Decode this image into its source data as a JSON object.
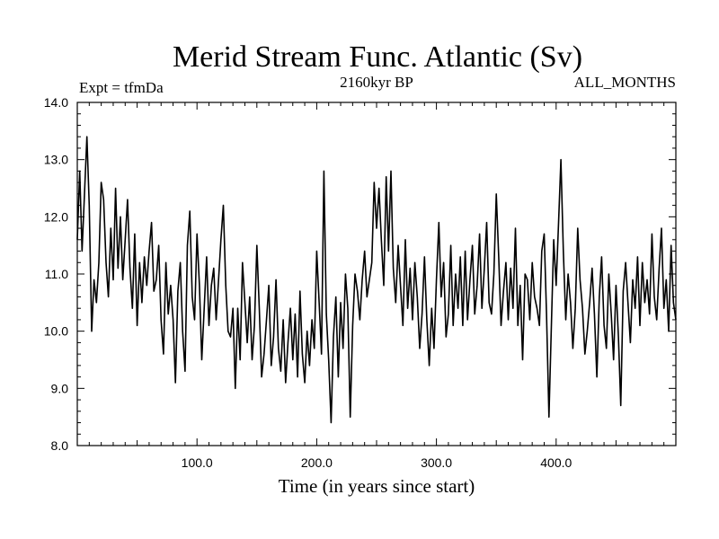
{
  "chart_data": {
    "type": "line",
    "title": "Merid Stream Func. Atlantic (Sv)",
    "subtitle_left": "Expt = tfmDa",
    "subtitle_center": "2160kyr BP",
    "subtitle_right": "ALL_MONTHS",
    "xlabel": "Time (in years since start)",
    "ylabel": "",
    "xlim": [
      0,
      500
    ],
    "ylim": [
      8.0,
      14.0
    ],
    "x_ticks": [
      100,
      200,
      300,
      400
    ],
    "x_tick_labels": [
      "100.0",
      "200.0",
      "300.0",
      "400.0"
    ],
    "y_ticks": [
      8,
      9,
      10,
      11,
      12,
      13,
      14
    ],
    "y_tick_labels": [
      "8.0",
      "9.0",
      "10.0",
      "11.0",
      "12.0",
      "13.0",
      "14.0"
    ],
    "grid": false,
    "series": [
      {
        "name": "Merid Stream Func. Atlantic",
        "color": "#000000",
        "x_start": 0,
        "x_step": 2,
        "values": [
          11.6,
          12.8,
          11.4,
          12.4,
          13.4,
          12.2,
          10.0,
          10.9,
          10.5,
          11.2,
          12.6,
          12.3,
          11.2,
          10.6,
          11.8,
          10.9,
          12.5,
          11.1,
          12.0,
          10.9,
          11.6,
          12.3,
          11.1,
          10.4,
          11.7,
          10.1,
          11.2,
          10.5,
          11.3,
          10.8,
          11.4,
          11.9,
          10.7,
          10.9,
          11.5,
          10.2,
          9.6,
          11.2,
          10.3,
          10.8,
          10.2,
          9.1,
          10.7,
          11.2,
          10.0,
          9.3,
          11.5,
          12.1,
          10.6,
          10.2,
          11.7,
          10.8,
          9.5,
          10.4,
          11.3,
          10.1,
          10.8,
          11.1,
          10.2,
          10.9,
          11.6,
          12.2,
          10.8,
          10.0,
          9.9,
          10.4,
          9.0,
          10.4,
          9.5,
          11.2,
          10.5,
          9.8,
          10.6,
          9.5,
          10.1,
          11.5,
          10.4,
          9.2,
          9.6,
          10.2,
          10.8,
          9.4,
          9.9,
          10.9,
          9.7,
          9.3,
          10.2,
          9.1,
          9.8,
          10.4,
          9.5,
          10.3,
          9.2,
          10.7,
          9.6,
          9.1,
          10.0,
          9.4,
          10.2,
          9.7,
          11.4,
          10.5,
          9.6,
          12.8,
          10.3,
          9.5,
          8.4,
          9.9,
          10.6,
          9.2,
          10.5,
          9.7,
          11.0,
          10.4,
          8.5,
          10.1,
          11.0,
          10.7,
          10.2,
          10.9,
          11.4,
          10.6,
          10.9,
          11.2,
          12.6,
          11.8,
          12.5,
          11.6,
          10.8,
          12.7,
          11.4,
          12.8,
          11.1,
          10.5,
          11.5,
          10.8,
          10.1,
          11.6,
          10.4,
          11.1,
          10.2,
          11.2,
          10.6,
          9.7,
          10.3,
          11.3,
          10.2,
          9.4,
          10.4,
          9.7,
          10.9,
          11.9,
          10.6,
          11.2,
          9.9,
          10.3,
          11.5,
          10.1,
          11.0,
          10.4,
          11.3,
          10.1,
          11.4,
          10.2,
          10.9,
          11.5,
          10.3,
          10.8,
          11.7,
          10.4,
          11.1,
          11.9,
          10.5,
          10.3,
          11.0,
          12.4,
          11.3,
          10.1,
          10.7,
          11.2,
          10.2,
          11.1,
          10.4,
          11.8,
          10.1,
          10.8,
          9.5,
          11.0,
          10.9,
          10.2,
          11.2,
          10.6,
          10.4,
          10.1,
          11.4,
          11.7,
          10.3,
          8.5,
          10.1,
          11.6,
          10.8,
          11.9,
          13.0,
          11.4,
          10.2,
          11.0,
          10.5,
          9.7,
          10.4,
          11.8,
          10.9,
          10.4,
          9.6,
          10.0,
          10.5,
          11.1,
          10.3,
          9.2,
          10.6,
          11.3,
          10.1,
          9.7,
          11.0,
          10.3,
          9.5,
          10.8,
          9.9,
          8.7,
          10.7,
          11.2,
          10.5,
          9.8,
          10.9,
          10.4,
          11.3,
          10.1,
          11.2,
          10.5,
          10.9,
          10.3,
          11.7,
          10.6,
          10.2,
          11.1,
          11.8,
          10.4,
          10.9,
          10.0,
          11.5,
          10.5,
          10.2
        ]
      }
    ]
  }
}
